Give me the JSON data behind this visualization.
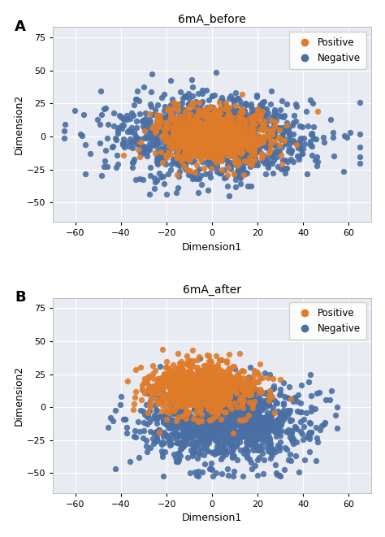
{
  "title_a": "6mA_before",
  "title_b": "6mA_after",
  "label_a": "A",
  "label_b": "B",
  "xlabel": "Dimension1",
  "ylabel": "Dimension2",
  "positive_color": "#E07B29",
  "negative_color": "#4A6FA5",
  "legend_labels": [
    "Positive",
    "Negative"
  ],
  "xlim": [
    -70,
    70
  ],
  "ylim": [
    -65,
    83
  ],
  "xticks": [
    -60,
    -40,
    -20,
    0,
    20,
    40,
    60
  ],
  "yticks": [
    -50,
    -25,
    0,
    25,
    50,
    75
  ],
  "background_color": "#E8EBF2",
  "fig_background": "#FFFFFF",
  "marker_size": 28,
  "alpha": 0.9,
  "n_positive_a": 900,
  "n_negative_a": 1200,
  "n_positive_b": 800,
  "n_negative_b": 1200,
  "figsize": [
    4.74,
    6.61
  ],
  "dpi": 100
}
